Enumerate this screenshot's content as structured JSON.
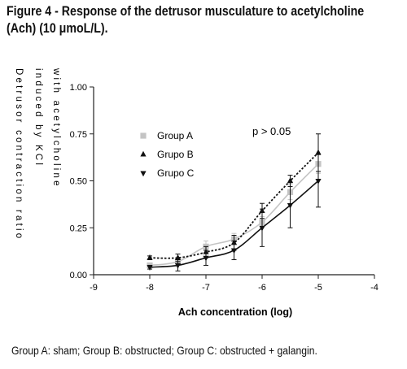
{
  "figure": {
    "title_line1": "Figure 4 - Response of the detrusor musculature to acetylcholine",
    "title_line2": "(Ach) (10 μmoL/L).",
    "caption": "Group A: sham; Group B: obstructed; Group C: obstructed + galangin."
  },
  "chart_data": {
    "type": "line",
    "xlabel": "Ach concentration (log)",
    "ylabel_lines": [
      "Detrusor contraction ratio",
      "induced by KCl",
      "with acetylcholine"
    ],
    "xlim": [
      -9,
      -4
    ],
    "ylim": [
      0,
      1
    ],
    "x_ticks": [
      "-9",
      "-8",
      "-7",
      "-6",
      "-5",
      "-4"
    ],
    "x_tick_values": [
      -9,
      -8,
      -7,
      -6,
      -5,
      -4
    ],
    "y_ticks": [
      "0.00",
      "0.25",
      "0.50",
      "0.75",
      "1.00"
    ],
    "y_tick_values": [
      0,
      0.25,
      0.5,
      0.75,
      1
    ],
    "annotation": "p > 0.05",
    "legend_position": "top-left",
    "grid": false,
    "x": [
      -8,
      -7.5,
      -7,
      -6.5,
      -6,
      -5.5,
      -5
    ],
    "series": [
      {
        "name": "Group A",
        "marker": "square",
        "color": "#c4c4c4",
        "line": "solid",
        "values": [
          0.05,
          0.07,
          0.15,
          0.19,
          0.28,
          0.44,
          0.59
        ],
        "errors": [
          0.01,
          0.02,
          0.03,
          0.03,
          0.03,
          0.04,
          0.05
        ]
      },
      {
        "name": "Grupo B",
        "marker": "triangle-up",
        "color": "#111111",
        "line": "dotted",
        "values": [
          0.09,
          0.09,
          0.12,
          0.17,
          0.34,
          0.5,
          0.65
        ],
        "errors": [
          0.01,
          0.02,
          0.03,
          0.04,
          0.04,
          0.03,
          0.1
        ]
      },
      {
        "name": "Grupo C",
        "marker": "triangle-down",
        "color": "#111111",
        "line": "solid",
        "values": [
          0.04,
          0.05,
          0.09,
          0.13,
          0.25,
          0.37,
          0.5
        ],
        "errors": [
          0.01,
          0.03,
          0.04,
          0.05,
          0.1,
          0.12,
          0.14
        ]
      }
    ]
  }
}
